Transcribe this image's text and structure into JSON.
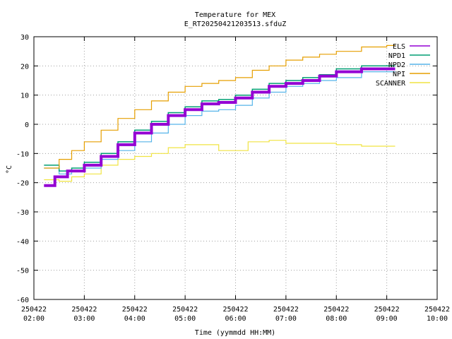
{
  "chart_data": {
    "type": "line",
    "title": "Temperature for MEX",
    "subtitle": "E_RT20250421203513.sfduZ",
    "xlabel": "Time (yymmdd HH:MM)",
    "ylabel": "°C",
    "xlim": [
      "2025-04-22T02:00",
      "2025-04-22T10:00"
    ],
    "ylim": [
      -60,
      30
    ],
    "grid": true,
    "legend_position": "top-right",
    "x_ticks": [
      {
        "date": "250422",
        "time": "02:00"
      },
      {
        "date": "250422",
        "time": "03:00"
      },
      {
        "date": "250422",
        "time": "04:00"
      },
      {
        "date": "250422",
        "time": "05:00"
      },
      {
        "date": "250422",
        "time": "06:00"
      },
      {
        "date": "250422",
        "time": "07:00"
      },
      {
        "date": "250422",
        "time": "08:00"
      },
      {
        "date": "250422",
        "time": "09:00"
      },
      {
        "date": "250422",
        "time": "10:00"
      }
    ],
    "y_ticks": [
      30,
      20,
      10,
      0,
      -10,
      -20,
      -30,
      -40,
      -50,
      -60
    ],
    "series": [
      {
        "name": "ELS",
        "color": "#9400d3",
        "points": [
          [
            "2025-04-22T02:12",
            -21
          ],
          [
            "2025-04-22T02:25",
            -18
          ],
          [
            "2025-04-22T02:40",
            -16
          ],
          [
            "2025-04-22T03:00",
            -14
          ],
          [
            "2025-04-22T03:20",
            -11
          ],
          [
            "2025-04-22T03:40",
            -7
          ],
          [
            "2025-04-22T04:00",
            -3
          ],
          [
            "2025-04-22T04:20",
            0
          ],
          [
            "2025-04-22T04:40",
            3
          ],
          [
            "2025-04-22T05:00",
            5
          ],
          [
            "2025-04-22T05:20",
            7
          ],
          [
            "2025-04-22T05:40",
            7.5
          ],
          [
            "2025-04-22T06:00",
            9
          ],
          [
            "2025-04-22T06:20",
            11
          ],
          [
            "2025-04-22T06:40",
            13
          ],
          [
            "2025-04-22T07:00",
            14
          ],
          [
            "2025-04-22T07:20",
            15
          ],
          [
            "2025-04-22T07:40",
            16.5
          ],
          [
            "2025-04-22T08:00",
            18
          ],
          [
            "2025-04-22T08:30",
            19
          ],
          [
            "2025-04-22T09:00",
            19
          ],
          [
            "2025-04-22T09:10",
            19
          ]
        ]
      },
      {
        "name": "NPD1",
        "color": "#009e73",
        "points": [
          [
            "2025-04-22T02:12",
            -14
          ],
          [
            "2025-04-22T02:30",
            -16
          ],
          [
            "2025-04-22T02:45",
            -15
          ],
          [
            "2025-04-22T03:00",
            -13
          ],
          [
            "2025-04-22T03:20",
            -10
          ],
          [
            "2025-04-22T03:40",
            -6
          ],
          [
            "2025-04-22T04:00",
            -2
          ],
          [
            "2025-04-22T04:20",
            1
          ],
          [
            "2025-04-22T04:40",
            4
          ],
          [
            "2025-04-22T05:00",
            6
          ],
          [
            "2025-04-22T05:20",
            8
          ],
          [
            "2025-04-22T05:40",
            8.5
          ],
          [
            "2025-04-22T06:00",
            10
          ],
          [
            "2025-04-22T06:20",
            12
          ],
          [
            "2025-04-22T06:40",
            14
          ],
          [
            "2025-04-22T07:00",
            15
          ],
          [
            "2025-04-22T07:20",
            16
          ],
          [
            "2025-04-22T07:40",
            17
          ],
          [
            "2025-04-22T08:00",
            19
          ],
          [
            "2025-04-22T08:30",
            20
          ],
          [
            "2025-04-22T09:00",
            20
          ],
          [
            "2025-04-22T09:10",
            20
          ]
        ]
      },
      {
        "name": "NPD2",
        "color": "#56b4e9",
        "points": [
          [
            "2025-04-22T02:12",
            -15
          ],
          [
            "2025-04-22T02:30",
            -17
          ],
          [
            "2025-04-22T02:45",
            -16
          ],
          [
            "2025-04-22T03:00",
            -15
          ],
          [
            "2025-04-22T03:20",
            -12
          ],
          [
            "2025-04-22T03:40",
            -9
          ],
          [
            "2025-04-22T04:00",
            -6
          ],
          [
            "2025-04-22T04:20",
            -3
          ],
          [
            "2025-04-22T04:40",
            0
          ],
          [
            "2025-04-22T05:00",
            3
          ],
          [
            "2025-04-22T05:20",
            4.5
          ],
          [
            "2025-04-22T05:40",
            5
          ],
          [
            "2025-04-22T06:00",
            6.5
          ],
          [
            "2025-04-22T06:20",
            9
          ],
          [
            "2025-04-22T06:40",
            11
          ],
          [
            "2025-04-22T07:00",
            13
          ],
          [
            "2025-04-22T07:20",
            14
          ],
          [
            "2025-04-22T07:40",
            15
          ],
          [
            "2025-04-22T08:00",
            16
          ],
          [
            "2025-04-22T08:30",
            18
          ],
          [
            "2025-04-22T09:00",
            18
          ],
          [
            "2025-04-22T09:10",
            18
          ]
        ]
      },
      {
        "name": "NPI",
        "color": "#e69f00",
        "points": [
          [
            "2025-04-22T02:12",
            -15
          ],
          [
            "2025-04-22T02:30",
            -12
          ],
          [
            "2025-04-22T02:45",
            -9
          ],
          [
            "2025-04-22T03:00",
            -6
          ],
          [
            "2025-04-22T03:20",
            -2
          ],
          [
            "2025-04-22T03:40",
            2
          ],
          [
            "2025-04-22T04:00",
            5
          ],
          [
            "2025-04-22T04:20",
            8
          ],
          [
            "2025-04-22T04:40",
            11
          ],
          [
            "2025-04-22T05:00",
            13
          ],
          [
            "2025-04-22T05:20",
            14
          ],
          [
            "2025-04-22T05:40",
            15
          ],
          [
            "2025-04-22T06:00",
            16
          ],
          [
            "2025-04-22T06:20",
            18.5
          ],
          [
            "2025-04-22T06:40",
            20
          ],
          [
            "2025-04-22T07:00",
            22
          ],
          [
            "2025-04-22T07:20",
            23
          ],
          [
            "2025-04-22T07:40",
            24
          ],
          [
            "2025-04-22T08:00",
            25
          ],
          [
            "2025-04-22T08:30",
            26.5
          ],
          [
            "2025-04-22T09:00",
            27
          ],
          [
            "2025-04-22T09:10",
            27
          ]
        ]
      },
      {
        "name": "SCANNER",
        "color": "#f0e442",
        "points": [
          [
            "2025-04-22T02:12",
            -19
          ],
          [
            "2025-04-22T02:30",
            -19.5
          ],
          [
            "2025-04-22T02:45",
            -18
          ],
          [
            "2025-04-22T03:00",
            -17
          ],
          [
            "2025-04-22T03:20",
            -14
          ],
          [
            "2025-04-22T03:40",
            -12
          ],
          [
            "2025-04-22T04:00",
            -11
          ],
          [
            "2025-04-22T04:20",
            -10
          ],
          [
            "2025-04-22T04:40",
            -8
          ],
          [
            "2025-04-22T05:00",
            -7
          ],
          [
            "2025-04-22T05:20",
            -7
          ],
          [
            "2025-04-22T05:40",
            -9
          ],
          [
            "2025-04-22T06:00",
            -9
          ],
          [
            "2025-04-22T06:15",
            -6
          ],
          [
            "2025-04-22T06:40",
            -5.5
          ],
          [
            "2025-04-22T07:00",
            -6.5
          ],
          [
            "2025-04-22T07:20",
            -6.5
          ],
          [
            "2025-04-22T07:40",
            -6.5
          ],
          [
            "2025-04-22T08:00",
            -7
          ],
          [
            "2025-04-22T08:30",
            -7.5
          ],
          [
            "2025-04-22T09:00",
            -7.5
          ],
          [
            "2025-04-22T09:10",
            -7.5
          ]
        ]
      }
    ]
  }
}
